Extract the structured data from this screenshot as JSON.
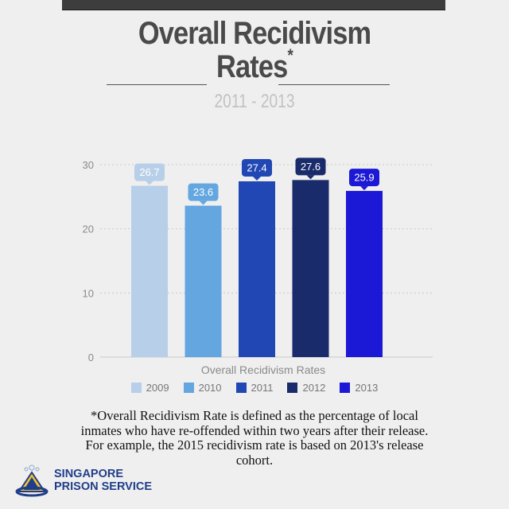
{
  "header": {
    "title_line1": "Overall Recidivism",
    "title_line2": "Rates",
    "title_mark": "*",
    "subtitle": "2011 - 2013"
  },
  "chart_data": {
    "type": "bar",
    "categories": [
      "2009",
      "2010",
      "2011",
      "2012",
      "2013"
    ],
    "values": [
      26.7,
      23.6,
      27.4,
      27.6,
      25.9
    ],
    "data_labels": [
      "26.7",
      "23.6",
      "27.4",
      "27.6",
      "25.9"
    ],
    "colors": [
      "#b7cfe8",
      "#63a6e0",
      "#2047b4",
      "#1a2b6b",
      "#1b18d6"
    ],
    "xlabel": "Overall Recidivism Rates",
    "ylabel": "",
    "ylim": [
      0,
      30
    ],
    "yticks": [
      0,
      10,
      20,
      30
    ],
    "grid": true,
    "legend_position": "bottom"
  },
  "footnote": {
    "line1": "*Overall Recidivism Rate is defined as the percentage of local",
    "line2": "inmates who have re-offended within two years after their release.",
    "line3": "For example, the 2015 recidivism rate is based on 2013's release",
    "line4": "cohort."
  },
  "logo": {
    "line1": "SINGAPORE",
    "line2": "PRISON SERVICE"
  }
}
